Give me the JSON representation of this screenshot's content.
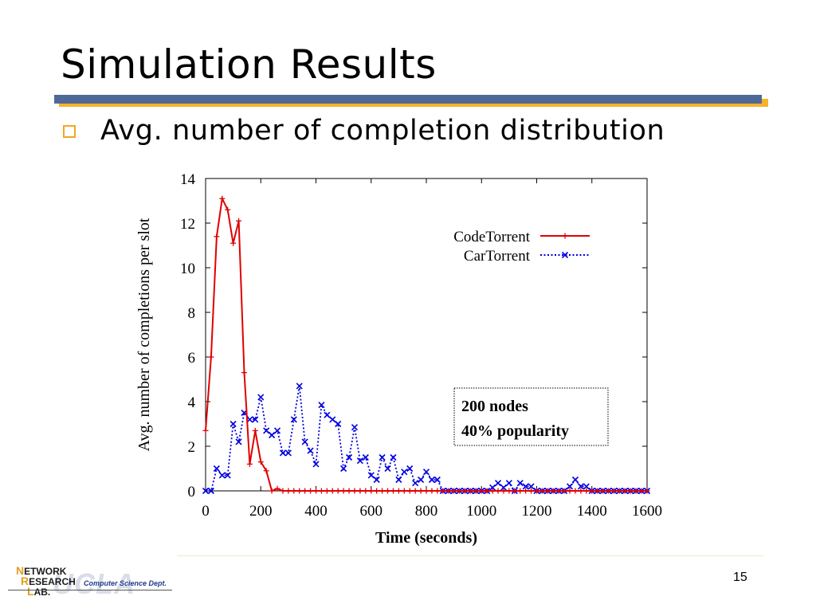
{
  "slide": {
    "title": "Simulation Results",
    "bullet": "Avg. number of completion distribution",
    "page_number": "15"
  },
  "logo": {
    "line1_cap": "N",
    "line1_rest": "ETWORK",
    "line2_cap": "R",
    "line2_rest": "ESEARCH",
    "line3_cap": "L",
    "line3_rest": "AB.",
    "dept": "Computer Science Dept.",
    "watermark": "UCLA"
  },
  "colors": {
    "title_rule": "#4f6997",
    "rule_shadow": "#f5b32b",
    "bullet": "#f2a61f",
    "codetorrent": "#e00000",
    "cartorrent": "#0000e0"
  },
  "chart_data": {
    "type": "line",
    "xlabel": "Time (seconds)",
    "ylabel": "Avg. number of completions per slot",
    "xlim": [
      0,
      1600
    ],
    "ylim": [
      0,
      14
    ],
    "xticks": [
      0,
      200,
      400,
      600,
      800,
      1000,
      1200,
      1400,
      1600
    ],
    "yticks": [
      0,
      2,
      4,
      6,
      8,
      10,
      12,
      14
    ],
    "legend_position": "top-right",
    "grid": false,
    "annotation": [
      "200 nodes",
      "40% popularity"
    ],
    "series": [
      {
        "name": "CodeTorrent",
        "color": "#e00000",
        "style": "solid",
        "marker": "+",
        "x": [
          0,
          20,
          40,
          60,
          80,
          100,
          120,
          140,
          160,
          180,
          200,
          220,
          240,
          260,
          280,
          300,
          320,
          340,
          360,
          380,
          400,
          420,
          440,
          460,
          480,
          500,
          520,
          540,
          560,
          580,
          600,
          620,
          640,
          660,
          680,
          700,
          720,
          740,
          760,
          780,
          800,
          820,
          840,
          860,
          880,
          900,
          920,
          940,
          960,
          980,
          1000,
          1020,
          1040,
          1060,
          1080,
          1100,
          1120,
          1140,
          1160,
          1180,
          1200,
          1220,
          1240,
          1260,
          1280,
          1300,
          1320,
          1340,
          1360,
          1380,
          1400,
          1420,
          1440,
          1460,
          1480,
          1500,
          1520,
          1540,
          1560,
          1580,
          1600
        ],
        "y": [
          2.7,
          6,
          11.4,
          13.1,
          12.6,
          11.1,
          12.1,
          5.3,
          1.2,
          2.7,
          1.3,
          0.9,
          0,
          0.1,
          0,
          0,
          0,
          0,
          0,
          0,
          0,
          0,
          0,
          0,
          0,
          0,
          0,
          0,
          0,
          0,
          0,
          0,
          0,
          0,
          0,
          0,
          0,
          0,
          0,
          0,
          0,
          0,
          0,
          0,
          0,
          0,
          0,
          0,
          0,
          0,
          0,
          0,
          0,
          0,
          0,
          0,
          0,
          0,
          0,
          0,
          0,
          0,
          0,
          0,
          0,
          0,
          0,
          0,
          0,
          0,
          0,
          0,
          0,
          0,
          0,
          0,
          0,
          0,
          0,
          0,
          0
        ]
      },
      {
        "name": "CarTorrent",
        "color": "#0000e0",
        "style": "dotted",
        "marker": "x",
        "x": [
          0,
          20,
          40,
          60,
          80,
          100,
          120,
          140,
          160,
          180,
          200,
          220,
          240,
          260,
          280,
          300,
          320,
          340,
          360,
          380,
          400,
          420,
          440,
          460,
          480,
          500,
          520,
          540,
          560,
          580,
          600,
          620,
          640,
          660,
          680,
          700,
          720,
          740,
          760,
          780,
          800,
          820,
          840,
          860,
          880,
          900,
          920,
          940,
          960,
          980,
          1000,
          1020,
          1040,
          1060,
          1080,
          1100,
          1120,
          1140,
          1160,
          1180,
          1200,
          1220,
          1240,
          1260,
          1280,
          1300,
          1320,
          1340,
          1360,
          1380,
          1400,
          1420,
          1440,
          1460,
          1480,
          1500,
          1520,
          1540,
          1560,
          1580,
          1600
        ],
        "y": [
          0,
          0,
          1,
          0.7,
          0.7,
          3,
          2.2,
          3.5,
          3.2,
          3.2,
          4.2,
          2.7,
          2.5,
          2.7,
          1.7,
          1.7,
          3.2,
          4.7,
          2.2,
          1.8,
          1.2,
          3.85,
          3.4,
          3.2,
          3,
          1,
          1.5,
          2.85,
          1.35,
          1.5,
          0.7,
          0.5,
          1.5,
          1,
          1.5,
          0.5,
          0.85,
          1,
          0.35,
          0.5,
          0.85,
          0.5,
          0.5,
          0,
          0,
          0,
          0,
          0,
          0,
          0,
          0,
          0,
          0.15,
          0.35,
          0.15,
          0.35,
          0,
          0.35,
          0.2,
          0.2,
          0,
          0,
          0,
          0,
          0,
          0,
          0.2,
          0.5,
          0.2,
          0.2,
          0,
          0,
          0,
          0,
          0,
          0,
          0,
          0,
          0,
          0,
          0
        ]
      }
    ]
  }
}
